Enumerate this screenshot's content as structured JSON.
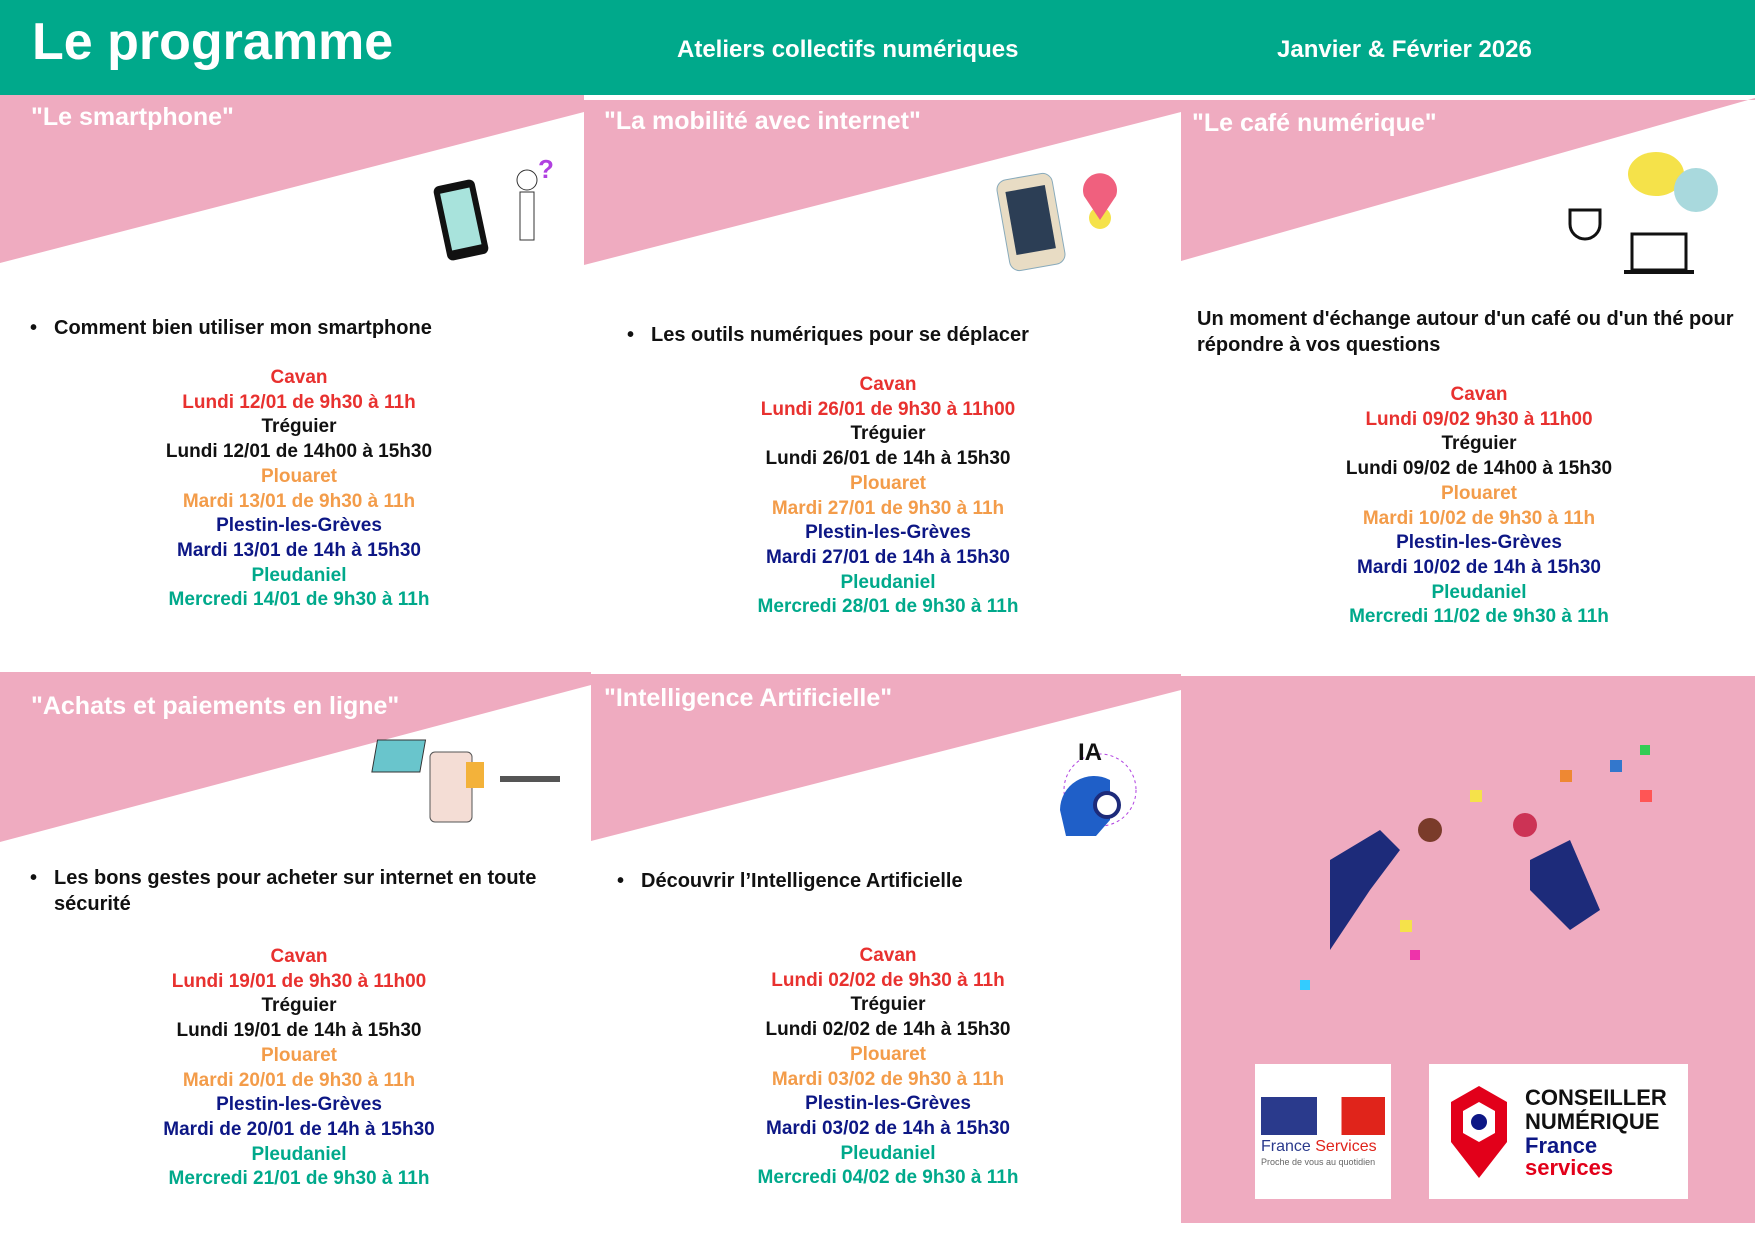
{
  "header": {
    "title": "Le programme",
    "subtitle": "Ateliers collectifs numériques",
    "period": "Janvier & Février 2026"
  },
  "colors": {
    "green": "#00a98b",
    "pink": "#efabc0",
    "red": "#e8312f",
    "orange": "#f39c4a",
    "navy": "#0d1785"
  },
  "panels": [
    {
      "title": "\"Le smartphone\"",
      "bullet": "Comment bien utiliser mon smartphone",
      "icon": "smartphone-icon",
      "schedule": [
        [
          "Cavan",
          "red"
        ],
        [
          "Lundi 12/01 de 9h30 à 11h",
          "red"
        ],
        [
          "Tréguier",
          "black"
        ],
        [
          "Lundi 12/01 de 14h00 à 15h30",
          "black"
        ],
        [
          "Plouaret",
          "orange"
        ],
        [
          "Mardi 13/01 de 9h30 à 11h",
          "orange"
        ],
        [
          "Plestin-les-Grèves",
          "navy"
        ],
        [
          "Mardi 13/01 de 14h à 15h30",
          "navy"
        ],
        [
          "Pleudaniel",
          "green"
        ],
        [
          "Mercredi 14/01 de 9h30 à 11h",
          "green"
        ]
      ]
    },
    {
      "title": "\"La mobilité avec internet\"",
      "bullet": "Les outils numériques pour se déplacer",
      "icon": "map-pin-icon",
      "schedule": [
        [
          "Cavan",
          "red"
        ],
        [
          "Lundi 26/01 de 9h30 à 11h00",
          "red"
        ],
        [
          "Tréguier",
          "black"
        ],
        [
          "Lundi 26/01 de 14h à 15h30",
          "black"
        ],
        [
          "Plouaret",
          "orange"
        ],
        [
          "Mardi 27/01 de 9h30 à 11h",
          "orange"
        ],
        [
          "Plestin-les-Grèves",
          "navy"
        ],
        [
          "Mardi 27/01 de 14h à 15h30",
          "navy"
        ],
        [
          "Pleudaniel",
          "green"
        ],
        [
          "Mercredi 28/01 de 9h30 à 11h",
          "green"
        ]
      ]
    },
    {
      "title": "\"Le café numérique\"",
      "description": "Un moment d'échange autour d'un café ou d'un thé pour répondre à vos questions",
      "icon": "coffee-chat-icon",
      "schedule": [
        [
          "Cavan",
          "red"
        ],
        [
          "Lundi 09/02 9h30 à 11h00",
          "red"
        ],
        [
          "Tréguier",
          "black"
        ],
        [
          "Lundi 09/02 de 14h00 à 15h30",
          "black"
        ],
        [
          "Plouaret",
          "orange"
        ],
        [
          "Mardi 10/02 de 9h30 à 11h",
          "orange"
        ],
        [
          "Plestin-les-Grèves",
          "navy"
        ],
        [
          "Mardi 10/02 de 14h à 15h30",
          "navy"
        ],
        [
          "Pleudaniel",
          "green"
        ],
        [
          "Mercredi 11/02 de 9h30 à 11h",
          "green"
        ]
      ]
    },
    {
      "title": "\"Achats et paiements en ligne\"",
      "bullet": "Les bons gestes pour acheter sur internet en toute sécurité",
      "icon": "shopping-icon",
      "schedule": [
        [
          "Cavan",
          "red"
        ],
        [
          "Lundi 19/01 de 9h30 à 11h00",
          "red"
        ],
        [
          "Tréguier",
          "black"
        ],
        [
          "Lundi 19/01 de 14h à 15h30",
          "black"
        ],
        [
          "Plouaret",
          "orange"
        ],
        [
          "Mardi 20/01 de 9h30 à 11h",
          "orange"
        ],
        [
          "Plestin-les-Grèves",
          "navy"
        ],
        [
          "Mardi  de 20/01 de 14h à 15h30",
          "navy"
        ],
        [
          "Pleudaniel",
          "green"
        ],
        [
          "Mercredi 21/01 de 9h30 à 11h",
          "green"
        ]
      ]
    },
    {
      "title": "\"Intelligence Artificielle\"",
      "bullet": "Découvrir l’Intelligence Artificielle",
      "icon": "ai-head-icon",
      "icon_label": "IA",
      "schedule": [
        [
          "Cavan",
          "red"
        ],
        [
          "Lundi 02/02 de 9h30 à 11h",
          "red"
        ],
        [
          "Tréguier",
          "black"
        ],
        [
          "Lundi 02/02 de 14h à 15h30",
          "black"
        ],
        [
          "Plouaret",
          "orange"
        ],
        [
          "Mardi 03/02 de 9h30 à 11h",
          "orange"
        ],
        [
          "Plestin-les-Grèves",
          "navy"
        ],
        [
          "Mardi 03/02 de 14h à 15h30",
          "navy"
        ],
        [
          "Pleudaniel",
          "green"
        ],
        [
          "Mercredi 04/02 de 9h30 à 11h",
          "green"
        ]
      ]
    }
  ],
  "logos": {
    "france_services": {
      "name": "France",
      "name2": "Services",
      "tagline": "Proche de vous au quotidien"
    },
    "conseiller": {
      "line1": "CONSEILLER",
      "line2": "NUMÉRIQUE",
      "line3": "France",
      "line4": "services"
    }
  }
}
